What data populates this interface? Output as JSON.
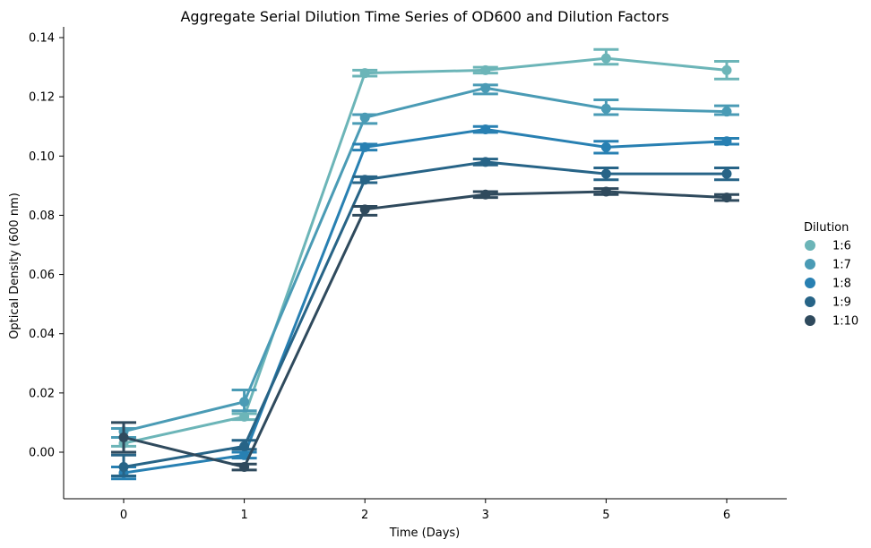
{
  "chart_data": {
    "type": "line",
    "title": "Aggregate Serial Dilution Time Series of OD600 and Dilution Factors",
    "xlabel": "Time (Days)",
    "ylabel": "Optical Density (600 nm)",
    "categories": [
      "0",
      "1",
      "2",
      "3",
      "5",
      "6"
    ],
    "ylim": [
      -0.016,
      0.142
    ],
    "yticks": [
      "0.00",
      "0.02",
      "0.04",
      "0.06",
      "0.08",
      "0.10",
      "0.12",
      "0.14"
    ],
    "ytick_values": [
      0.0,
      0.02,
      0.04,
      0.06,
      0.08,
      0.1,
      0.12,
      0.14
    ],
    "legend": {
      "title": "Dilution",
      "position": "right"
    },
    "grid": false,
    "series": [
      {
        "name": "1:6",
        "color": "#6cb5b8",
        "values": [
          0.003,
          0.012,
          0.128,
          0.129,
          0.133,
          0.129
        ],
        "ci_low": [
          0.002,
          0.011,
          0.127,
          0.128,
          0.131,
          0.126
        ],
        "ci_high": [
          0.005,
          0.013,
          0.129,
          0.13,
          0.136,
          0.132
        ]
      },
      {
        "name": "1:7",
        "color": "#4a9bb5",
        "values": [
          0.007,
          0.017,
          0.113,
          0.123,
          0.116,
          0.115
        ],
        "ci_low": [
          0.005,
          0.014,
          0.111,
          0.121,
          0.114,
          0.114
        ],
        "ci_high": [
          0.008,
          0.021,
          0.114,
          0.124,
          0.119,
          0.117
        ]
      },
      {
        "name": "1:8",
        "color": "#2880b2",
        "values": [
          -0.007,
          -0.001,
          0.103,
          0.109,
          0.103,
          0.105
        ],
        "ci_low": [
          -0.009,
          -0.002,
          0.102,
          0.108,
          0.101,
          0.104
        ],
        "ci_high": [
          -0.005,
          0.0,
          0.104,
          0.11,
          0.105,
          0.106
        ]
      },
      {
        "name": "1:9",
        "color": "#276487",
        "values": [
          -0.005,
          0.002,
          0.092,
          0.098,
          0.094,
          0.094
        ],
        "ci_low": [
          -0.008,
          0.001,
          0.091,
          0.097,
          0.092,
          0.092
        ],
        "ci_high": [
          -0.001,
          0.004,
          0.093,
          0.099,
          0.096,
          0.096
        ]
      },
      {
        "name": "1:10",
        "color": "#2f4a5d",
        "values": [
          0.005,
          -0.005,
          0.082,
          0.087,
          0.088,
          0.086
        ],
        "ci_low": [
          0.0,
          -0.006,
          0.08,
          0.086,
          0.087,
          0.085
        ],
        "ci_high": [
          0.01,
          -0.004,
          0.083,
          0.088,
          0.089,
          0.087
        ]
      }
    ]
  }
}
